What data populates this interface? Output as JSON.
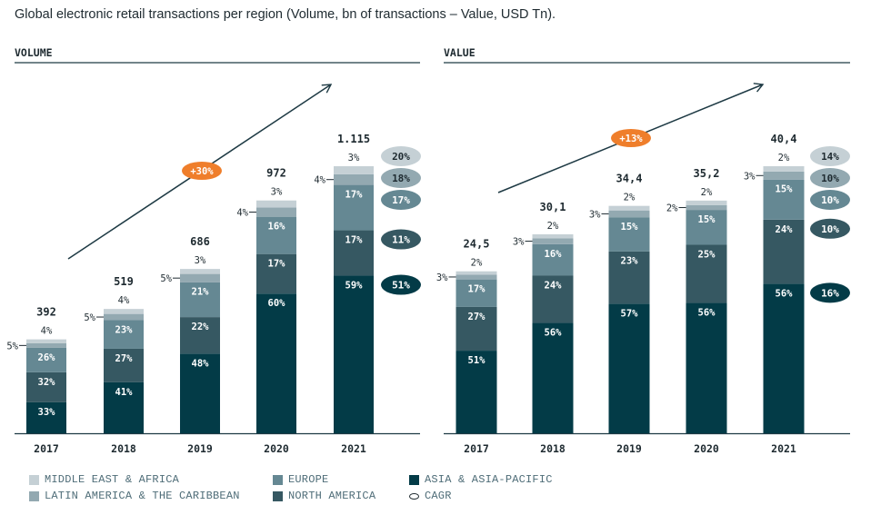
{
  "title": "Global electronic retail transactions per region (Volume, bn of transactions – Value, USD Tn).",
  "colors": {
    "middle_east_africa": "#c5d0d5",
    "latin_america": "#93a9b1",
    "europe": "#658893",
    "north_america": "#365862",
    "asia_pacific": "#033b47",
    "cagr_badge": "#ef7e2b",
    "axis": "#1e3a44",
    "text_dark": "#1e2a30"
  },
  "legend": [
    {
      "key": "middle_east_africa",
      "label": "MIDDLE EAST & AFRICA"
    },
    {
      "key": "latin_america",
      "label": "LATIN AMERICA & THE CARIBBEAN"
    },
    {
      "key": "europe",
      "label": "EUROPE"
    },
    {
      "key": "north_america",
      "label": "NORTH AMERICA"
    },
    {
      "key": "asia_pacific",
      "label": "ASIA & ASIA-PACIFIC"
    },
    {
      "key": "cagr",
      "label": "CAGR"
    }
  ],
  "chart_data": [
    {
      "type": "bar",
      "stacked": true,
      "panel_title": "VOLUME",
      "unit": "bn of transactions",
      "categories": [
        "2017",
        "2018",
        "2019",
        "2020",
        "2021"
      ],
      "totals": [
        392,
        519,
        686,
        972,
        1115
      ],
      "total_labels": [
        "392",
        "519",
        "686",
        "972",
        "1.115"
      ],
      "series": [
        {
          "name": "ASIA & ASIA-PACIFIC",
          "key": "asia_pacific",
          "values": [
            33,
            41,
            48,
            60,
            59
          ]
        },
        {
          "name": "NORTH AMERICA",
          "key": "north_america",
          "values": [
            32,
            27,
            22,
            17,
            17
          ]
        },
        {
          "name": "EUROPE",
          "key": "europe",
          "values": [
            26,
            23,
            21,
            16,
            17
          ]
        },
        {
          "name": "LATIN AMERICA & THE CARIBBEAN",
          "key": "latin_america",
          "values": [
            5,
            5,
            5,
            4,
            4
          ]
        },
        {
          "name": "MIDDLE EAST & AFRICA",
          "key": "middle_east_africa",
          "values": [
            4,
            4,
            3,
            3,
            3
          ]
        }
      ],
      "overall_cagr": "+30%",
      "cagr_by_region": [
        {
          "key": "middle_east_africa",
          "label": "20%"
        },
        {
          "key": "latin_america",
          "label": "18%"
        },
        {
          "key": "europe",
          "label": "17%"
        },
        {
          "key": "north_america",
          "label": "11%"
        },
        {
          "key": "asia_pacific",
          "label": "51%"
        }
      ],
      "ylim": [
        0,
        1115
      ]
    },
    {
      "type": "bar",
      "stacked": true,
      "panel_title": "VALUE",
      "unit": "USD Tn",
      "categories": [
        "2017",
        "2018",
        "2019",
        "2020",
        "2021"
      ],
      "totals": [
        24.5,
        30.1,
        34.4,
        35.2,
        40.4
      ],
      "total_labels": [
        "24,5",
        "30,1",
        "34,4",
        "35,2",
        "40,4"
      ],
      "series": [
        {
          "name": "ASIA & ASIA-PACIFIC",
          "key": "asia_pacific",
          "values": [
            51,
            56,
            57,
            56,
            56
          ]
        },
        {
          "name": "NORTH AMERICA",
          "key": "north_america",
          "values": [
            27,
            24,
            23,
            25,
            24
          ]
        },
        {
          "name": "EUROPE",
          "key": "europe",
          "values": [
            17,
            16,
            15,
            15,
            15
          ]
        },
        {
          "name": "LATIN AMERICA & THE CARIBBEAN",
          "key": "latin_america",
          "values": [
            3,
            3,
            3,
            2,
            3
          ]
        },
        {
          "name": "MIDDLE EAST & AFRICA",
          "key": "middle_east_africa",
          "values": [
            2,
            2,
            2,
            2,
            2
          ]
        }
      ],
      "overall_cagr": "+13%",
      "cagr_by_region": [
        {
          "key": "middle_east_africa",
          "label": "14%"
        },
        {
          "key": "latin_america",
          "label": "10%"
        },
        {
          "key": "europe",
          "label": "10%"
        },
        {
          "key": "north_america",
          "label": "10%"
        },
        {
          "key": "asia_pacific",
          "label": "16%"
        }
      ],
      "ylim": [
        0,
        40.4
      ]
    }
  ]
}
